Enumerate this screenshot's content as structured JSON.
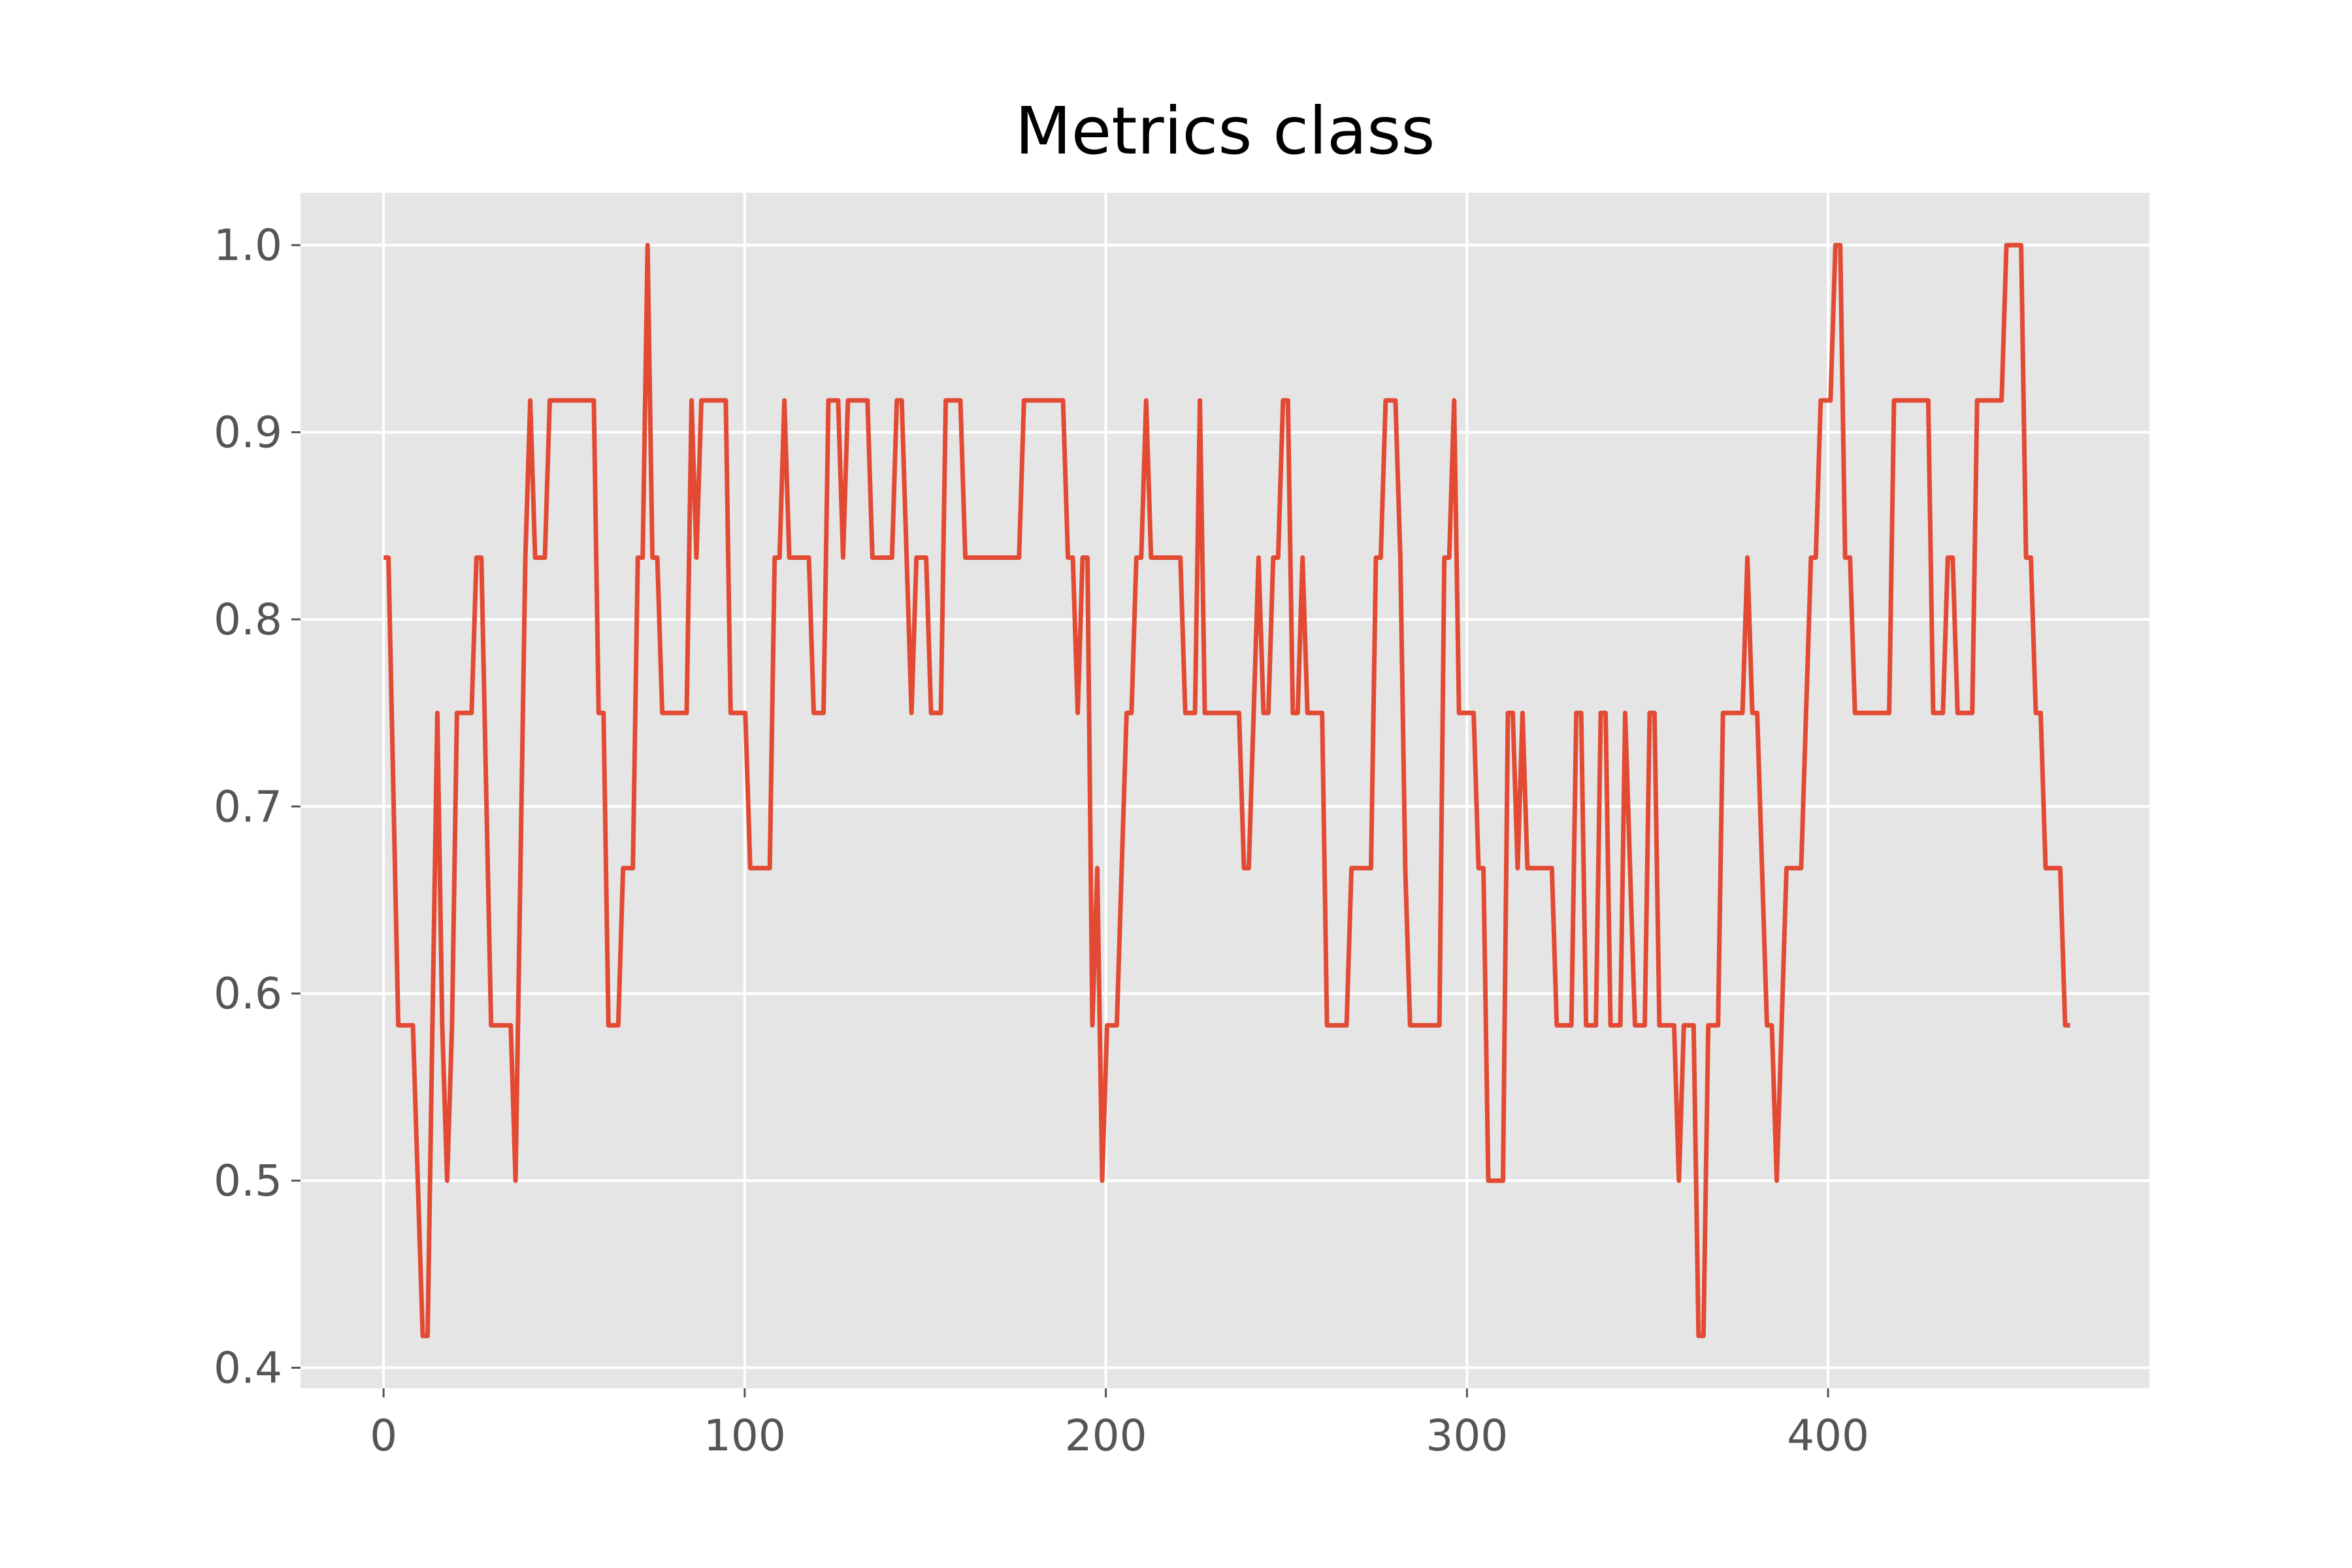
{
  "chart_data": {
    "type": "line",
    "title": "Metrics class",
    "xlabel": "",
    "ylabel": "",
    "xlim": [
      -23,
      489
    ],
    "ylim": [
      0.389,
      1.028
    ],
    "xticks": [
      0,
      100,
      200,
      300,
      400
    ],
    "xtick_labels": [
      "0",
      "100",
      "200",
      "300",
      "400"
    ],
    "yticks": [
      0.4,
      0.5,
      0.6,
      0.7,
      0.8,
      0.9,
      1.0
    ],
    "ytick_labels": [
      "0.4",
      "0.5",
      "0.6",
      "0.7",
      "0.8",
      "0.9",
      "1.0"
    ],
    "grid": true,
    "background": "#e5e5e5",
    "series": [
      {
        "color": "#e24a33",
        "values": [
          0.833,
          0.833,
          0.708,
          0.583,
          0.583,
          0.583,
          0.583,
          0.5,
          0.417,
          0.417,
          0.583,
          0.75,
          0.583,
          0.5,
          0.583,
          0.75,
          0.75,
          0.75,
          0.75,
          0.833,
          0.833,
          0.708,
          0.583,
          0.583,
          0.583,
          0.583,
          0.583,
          0.5,
          0.667,
          0.833,
          0.917,
          0.833,
          0.833,
          0.833,
          0.917,
          0.917,
          0.917,
          0.917,
          0.917,
          0.917,
          0.917,
          0.917,
          0.917,
          0.917,
          0.75,
          0.75,
          0.583,
          0.583,
          0.583,
          0.667,
          0.667,
          0.667,
          0.833,
          0.833,
          1.0,
          0.833,
          0.833,
          0.75,
          0.75,
          0.75,
          0.75,
          0.75,
          0.75,
          0.917,
          0.833,
          0.917,
          0.917,
          0.917,
          0.917,
          0.917,
          0.917,
          0.75,
          0.75,
          0.75,
          0.75,
          0.667,
          0.667,
          0.667,
          0.667,
          0.667,
          0.833,
          0.833,
          0.917,
          0.833,
          0.833,
          0.833,
          0.833,
          0.833,
          0.75,
          0.75,
          0.75,
          0.917,
          0.917,
          0.917,
          0.833,
          0.917,
          0.917,
          0.917,
          0.917,
          0.917,
          0.833,
          0.833,
          0.833,
          0.833,
          0.833,
          0.917,
          0.917,
          0.833,
          0.75,
          0.833,
          0.833,
          0.833,
          0.75,
          0.75,
          0.75,
          0.917,
          0.917,
          0.917,
          0.917,
          0.833,
          0.833,
          0.833,
          0.833,
          0.833,
          0.833,
          0.833,
          0.833,
          0.833,
          0.833,
          0.833,
          0.833,
          0.917,
          0.917,
          0.917,
          0.917,
          0.917,
          0.917,
          0.917,
          0.917,
          0.917,
          0.833,
          0.833,
          0.75,
          0.833,
          0.833,
          0.583,
          0.667,
          0.5,
          0.583,
          0.583,
          0.583,
          0.667,
          0.75,
          0.75,
          0.833,
          0.833,
          0.917,
          0.833,
          0.833,
          0.833,
          0.833,
          0.833,
          0.833,
          0.833,
          0.75,
          0.75,
          0.75,
          0.917,
          0.75,
          0.75,
          0.75,
          0.75,
          0.75,
          0.75,
          0.75,
          0.75,
          0.667,
          0.667,
          0.75,
          0.833,
          0.75,
          0.75,
          0.833,
          0.833,
          0.917,
          0.917,
          0.75,
          0.75,
          0.833,
          0.75,
          0.75,
          0.75,
          0.75,
          0.583,
          0.583,
          0.583,
          0.583,
          0.583,
          0.667,
          0.667,
          0.667,
          0.667,
          0.667,
          0.833,
          0.833,
          0.917,
          0.917,
          0.917,
          0.833,
          0.667,
          0.583,
          0.583,
          0.583,
          0.583,
          0.583,
          0.583,
          0.583,
          0.833,
          0.833,
          0.917,
          0.75,
          0.75,
          0.75,
          0.75,
          0.667,
          0.667,
          0.5,
          0.5,
          0.5,
          0.5,
          0.75,
          0.75,
          0.667,
          0.75,
          0.667,
          0.667,
          0.667,
          0.667,
          0.667,
          0.667,
          0.583,
          0.583,
          0.583,
          0.583,
          0.75,
          0.75,
          0.583,
          0.583,
          0.583,
          0.75,
          0.75,
          0.583,
          0.583,
          0.583,
          0.75,
          0.667,
          0.583,
          0.583,
          0.583,
          0.75,
          0.75,
          0.583,
          0.583,
          0.583,
          0.583,
          0.5,
          0.583,
          0.583,
          0.583,
          0.417,
          0.417,
          0.583,
          0.583,
          0.583,
          0.75,
          0.75,
          0.75,
          0.75,
          0.75,
          0.833,
          0.75,
          0.75,
          0.667,
          0.583,
          0.583,
          0.5,
          0.583,
          0.667,
          0.667,
          0.667,
          0.667,
          0.75,
          0.833,
          0.833,
          0.917,
          0.917,
          0.917,
          1.0,
          1.0,
          0.833,
          0.833,
          0.75,
          0.75,
          0.75,
          0.75,
          0.75,
          0.75,
          0.75,
          0.75,
          0.917,
          0.917,
          0.917,
          0.917,
          0.917,
          0.917,
          0.917,
          0.917,
          0.75,
          0.75,
          0.75,
          0.833,
          0.833,
          0.75,
          0.75,
          0.75,
          0.75,
          0.917,
          0.917,
          0.917,
          0.917,
          0.917,
          0.917,
          1.0,
          1.0,
          1.0,
          1.0,
          0.833,
          0.833,
          0.75,
          0.75,
          0.667,
          0.667,
          0.667,
          0.667,
          0.583,
          0.583
        ]
      }
    ]
  }
}
